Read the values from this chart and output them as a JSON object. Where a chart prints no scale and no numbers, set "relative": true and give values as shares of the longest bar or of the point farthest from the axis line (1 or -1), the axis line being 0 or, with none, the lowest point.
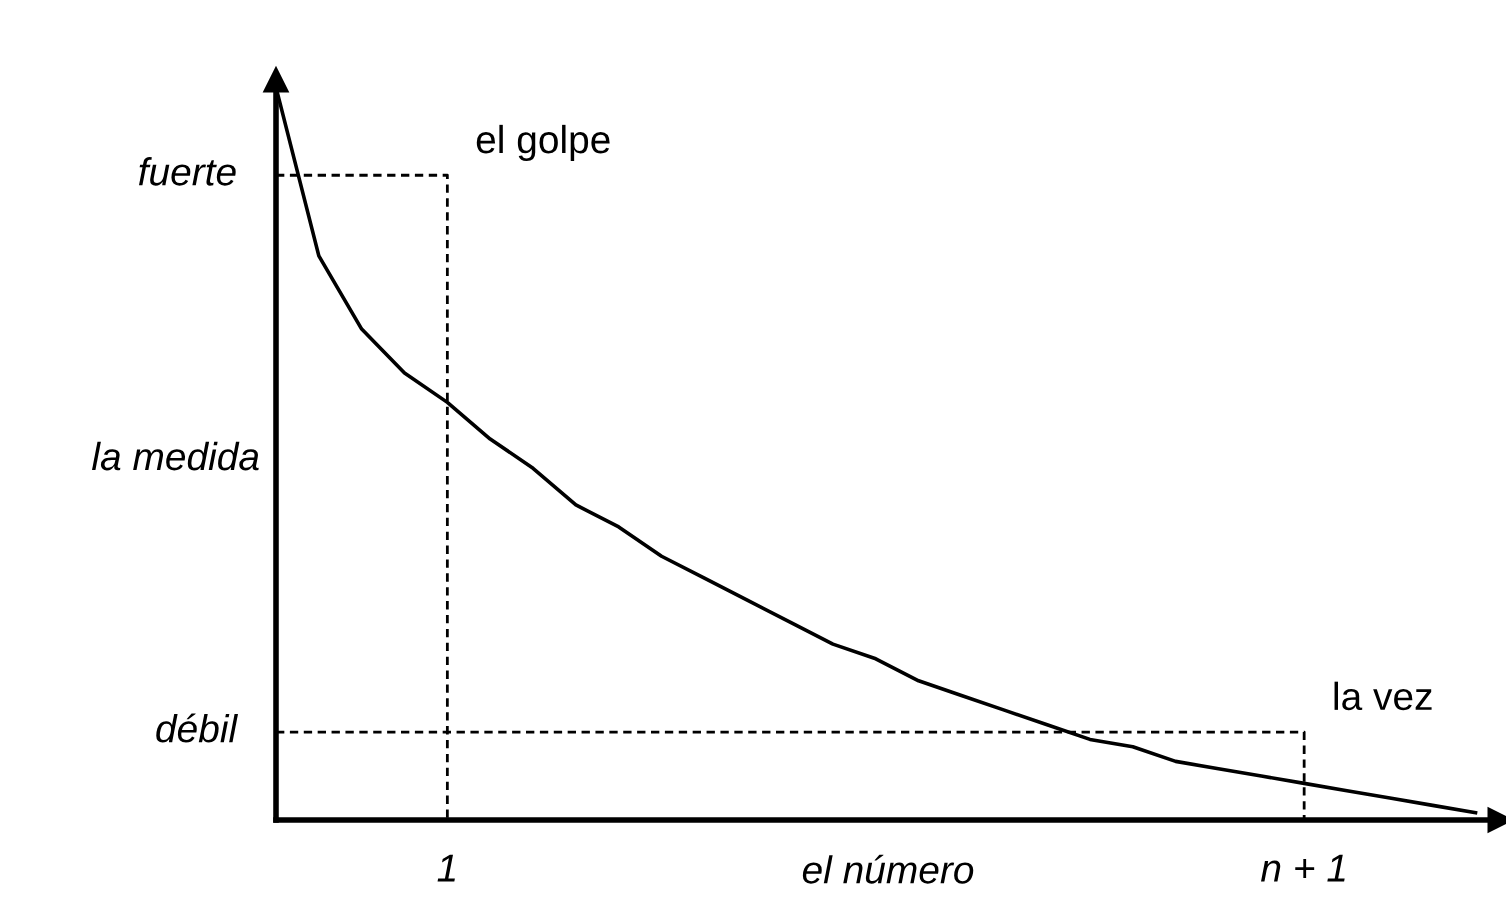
{
  "chart_data": {
    "type": "line",
    "relative": true,
    "xlabel": "el número",
    "ylabel": "la medida",
    "categories": [
      null,
      null,
      null,
      null,
      "1",
      null,
      null,
      null,
      null,
      null,
      null,
      null,
      null,
      null,
      null,
      null,
      null,
      null,
      null,
      null,
      null,
      null,
      null,
      null,
      "n + 1",
      null,
      null,
      null,
      null
    ],
    "grid": false,
    "marker": "none",
    "series": [
      {
        "color": "#000000",
        "line_style": "solid",
        "values": [
          1.0,
          0.77,
          0.67,
          0.61,
          0.57,
          0.52,
          0.48,
          0.43,
          0.4,
          0.36,
          0.33,
          0.3,
          0.27,
          0.24,
          0.22,
          0.19,
          0.17,
          0.15,
          0.13,
          0.11,
          0.1,
          0.08,
          0.07,
          0.06,
          0.05,
          0.04,
          0.03,
          0.02,
          0.01
        ]
      },
      {
        "type": "step",
        "color": "#000000",
        "line_style": "dashed",
        "values": [
          0.88,
          0.88,
          0.88,
          0.88,
          0,
          null,
          null,
          null,
          null,
          null,
          null,
          null,
          null,
          null,
          null,
          null,
          null,
          null,
          null,
          null,
          null,
          null,
          null,
          null,
          null,
          null,
          null,
          null,
          null
        ]
      },
      {
        "type": "step",
        "color": "#000000",
        "line_style": "dashed",
        "values": [
          0.12,
          0.12,
          0.12,
          0.12,
          0.12,
          0.12,
          0.12,
          0.12,
          0.12,
          0.12,
          0.12,
          0.12,
          0.12,
          0.12,
          0.12,
          0.12,
          0.12,
          0.12,
          0.12,
          0.12,
          0.12,
          0.12,
          0.12,
          0.12,
          0,
          null,
          null,
          null,
          null
        ]
      }
    ],
    "annotations": [
      {
        "text": "el golpe",
        "x": "1",
        "y": 0.88
      },
      {
        "text": "la vez",
        "x": "n + 1",
        "y": 0.12
      },
      "fuerte",
      "débil"
    ]
  }
}
